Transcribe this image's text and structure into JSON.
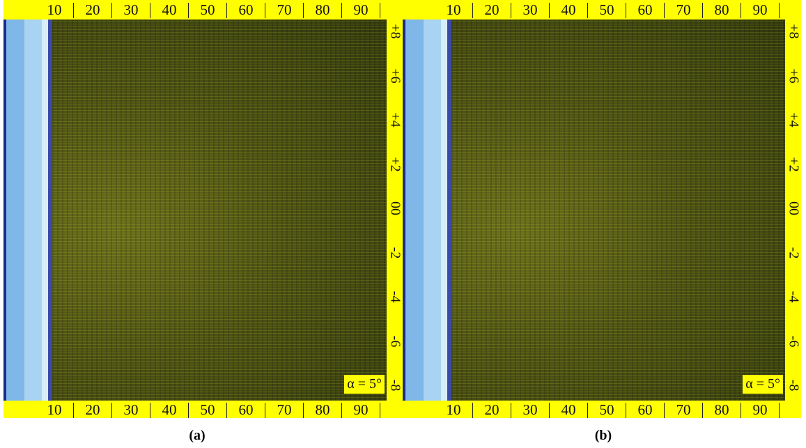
{
  "panels": [
    {
      "top_scale": [
        "10",
        "20",
        "30",
        "40",
        "50",
        "60",
        "70",
        "80",
        "90"
      ],
      "side_scale": [
        "+8",
        "+6",
        "+4",
        "+2",
        "00",
        "-2",
        "-4",
        "-6",
        "-8"
      ],
      "bottom_scale": [
        "10",
        "20",
        "30",
        "40",
        "50",
        "60",
        "70",
        "80",
        "90"
      ],
      "angle_label": "α = 5°",
      "caption": "(a)"
    },
    {
      "top_scale": [
        "10",
        "20",
        "30",
        "40",
        "50",
        "60",
        "70",
        "80",
        "90"
      ],
      "side_scale": [
        "+8",
        "+6",
        "+4",
        "+2",
        "00",
        "-2",
        "-4",
        "-6",
        "-8"
      ],
      "bottom_scale": [
        "10",
        "20",
        "30",
        "40",
        "50",
        "60",
        "70",
        "80",
        "90"
      ],
      "angle_label": "α = 5°",
      "caption": "(b)"
    }
  ]
}
